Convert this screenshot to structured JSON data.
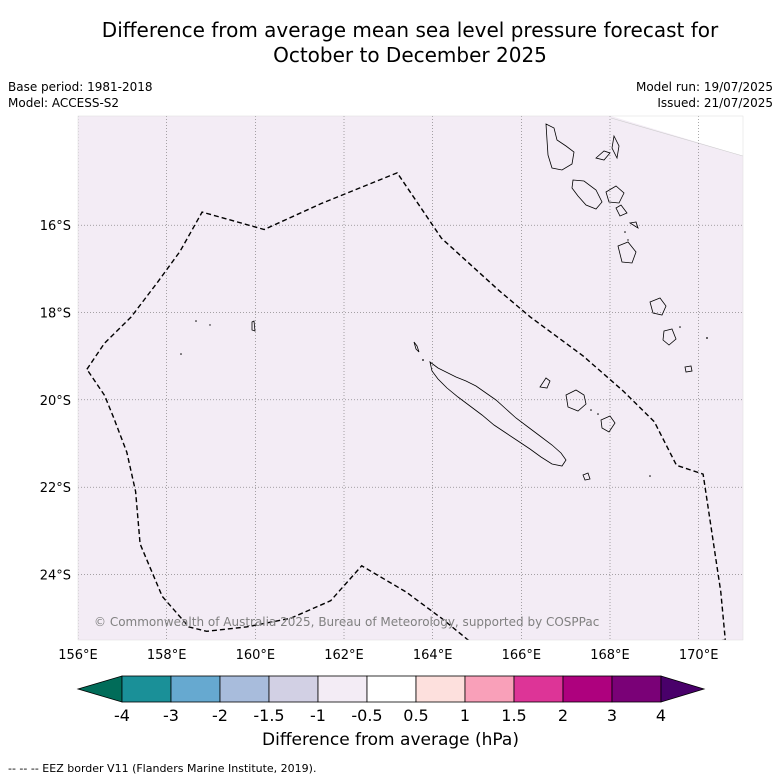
{
  "title": {
    "line1": "Difference from average mean sea level pressure forecast for",
    "line2": "October to December 2025"
  },
  "info": {
    "base_period": "Base period: 1981-2018",
    "model": "Model: ACCESS-S2",
    "model_run": "Model run: 19/07/2025",
    "issued": "Issued: 21/07/2025"
  },
  "map": {
    "lon_range": [
      156,
      171
    ],
    "lat_range": [
      -25.5,
      -13.5
    ],
    "lon_ticks": [
      156,
      158,
      160,
      162,
      164,
      166,
      168,
      170
    ],
    "lon_labels": [
      "156°E",
      "158°E",
      "160°E",
      "162°E",
      "164°E",
      "166°E",
      "168°E",
      "170°E"
    ],
    "lat_ticks": [
      -16,
      -18,
      -20,
      -22,
      -24
    ],
    "lat_labels": [
      "16°S",
      "18°S",
      "20°S",
      "22°S",
      "24°S"
    ],
    "fill_color": "#f3ecf5",
    "copyright": "© Commonwealth of Australia 2025, Bureau of Meteorology, supported by COSPPac",
    "eez_border": [
      [
        156.2,
        -19.3
      ],
      [
        156.6,
        -18.7
      ],
      [
        157.2,
        -18.1
      ],
      [
        157.8,
        -17.3
      ],
      [
        158.3,
        -16.6
      ],
      [
        158.8,
        -15.7
      ],
      [
        160.2,
        -16.1
      ],
      [
        161.5,
        -15.5
      ],
      [
        163.2,
        -14.8
      ],
      [
        164.2,
        -16.3
      ],
      [
        165.5,
        -17.5
      ],
      [
        166.2,
        -18.1
      ],
      [
        167.4,
        -19.0
      ],
      [
        168.3,
        -19.8
      ],
      [
        169.0,
        -20.5
      ],
      [
        169.5,
        -21.5
      ],
      [
        170.1,
        -21.7
      ],
      [
        170.5,
        -24.4
      ],
      [
        170.6,
        -25.5
      ],
      [
        170.0,
        -25.6
      ],
      [
        169.3,
        -25.7
      ],
      [
        168.4,
        -25.7
      ],
      [
        167.8,
        -25.8
      ],
      [
        166.6,
        -25.9
      ],
      [
        166.0,
        -26.0
      ],
      [
        165.6,
        -25.9
      ],
      [
        164.8,
        -25.5
      ],
      [
        164.2,
        -25.0
      ],
      [
        163.4,
        -24.4
      ],
      [
        162.4,
        -23.8
      ],
      [
        161.7,
        -24.6
      ],
      [
        160.8,
        -25.0
      ],
      [
        159.8,
        -25.2
      ],
      [
        158.9,
        -25.3
      ],
      [
        158.5,
        -25.2
      ],
      [
        157.9,
        -24.5
      ],
      [
        157.4,
        -23.3
      ],
      [
        157.3,
        -22.1
      ],
      [
        157.1,
        -21.2
      ],
      [
        156.8,
        -20.4
      ],
      [
        156.6,
        -19.9
      ],
      [
        156.2,
        -19.3
      ]
    ]
  },
  "colorbar": {
    "title": "Difference from average (hPa)",
    "labels": [
      "-4",
      "-3",
      "-2",
      "-1.5",
      "-1",
      "-0.5",
      "0.5",
      "1",
      "1.5",
      "2",
      "3",
      "4"
    ],
    "colors": [
      "#1a9098",
      "#66a9d0",
      "#a8bcdc",
      "#d2d0e4",
      "#f3ecf5",
      "#ffffff",
      "#fde0dd",
      "#f9a0b9",
      "#dd3497",
      "#ae017e",
      "#7a0177"
    ],
    "under_color": "#016c59",
    "over_color": "#49006a"
  },
  "footer": "--  --  -- EEZ border V11 (Flanders Marine Institute, 2019)."
}
